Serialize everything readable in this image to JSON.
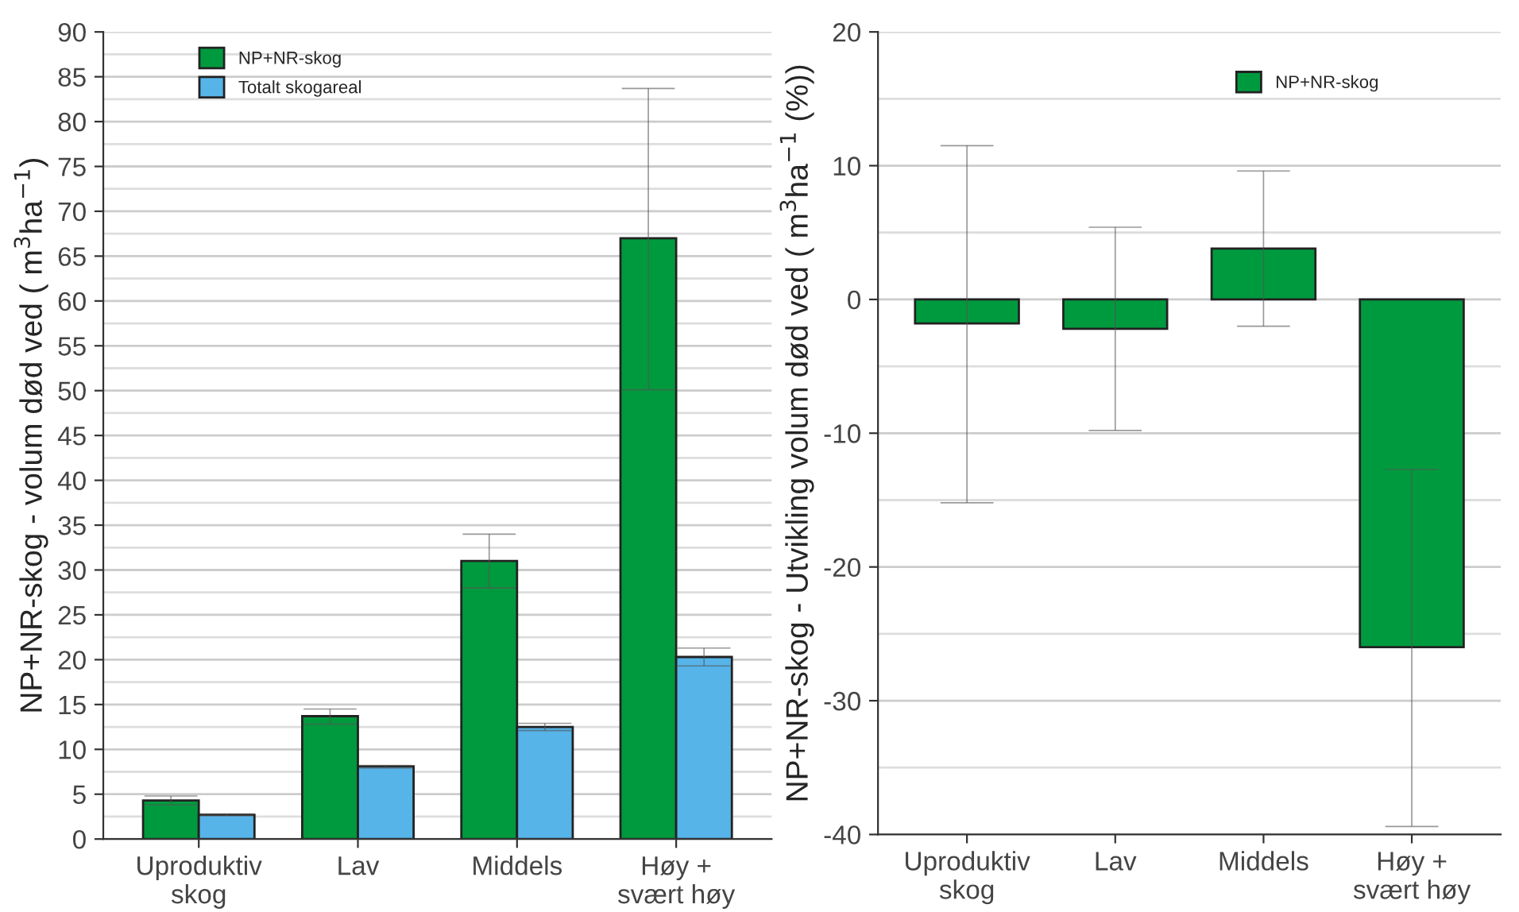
{
  "chart_data": [
    {
      "type": "bar",
      "ylabel": "NP+NR-skog - volum død ved ( m$^{3}$ha$^{−1}$)",
      "categories": [
        "Uproduktiv\nskog",
        "Lav",
        "Middels",
        "Høy +\nsvært høy"
      ],
      "series": [
        {
          "name": "NP+NR-skog",
          "color": "#009a3e",
          "values": [
            4.3,
            13.7,
            31,
            67
          ],
          "errors": [
            [
              3.8,
              4.8
            ],
            [
              12.8,
              14.5
            ],
            [
              28,
              34
            ],
            [
              50.1,
              83.7
            ]
          ]
        },
        {
          "name": "Totalt skogareal",
          "color": "#56b4e9",
          "values": [
            2.7,
            8.1,
            12.5,
            20.3
          ],
          "errors": [
            [
              2.6,
              2.8
            ],
            [
              7.9,
              8.2
            ],
            [
              12.1,
              12.9
            ],
            [
              19.3,
              21.3
            ]
          ]
        }
      ],
      "ylim": [
        0,
        90
      ],
      "yticks": [
        0,
        5,
        10,
        15,
        20,
        25,
        30,
        35,
        40,
        45,
        50,
        55,
        60,
        65,
        70,
        75,
        80,
        85,
        90
      ],
      "grid": "y",
      "legend": "top left"
    },
    {
      "type": "bar",
      "ylabel": "NP+NR-skog - Utvikling volum død ved ( m$^{3}$ha$^{−1}$ (%))",
      "categories": [
        "Uproduktiv\nskog",
        "Lav",
        "Middels",
        "Høy +\nsvært høy"
      ],
      "series": [
        {
          "name": "NP+NR-skog",
          "color": "#009a3e",
          "values": [
            -1.8,
            -2.2,
            3.8,
            -26
          ],
          "errors": [
            [
              -15.2,
              11.5
            ],
            [
              -9.8,
              5.4
            ],
            [
              -2,
              9.6
            ],
            [
              -39.4,
              -12.7
            ]
          ]
        }
      ],
      "ylim": [
        -40,
        20
      ],
      "yticks": [
        -40,
        -30,
        -20,
        -10,
        0,
        10,
        20
      ],
      "grid": "y",
      "legend": "top right"
    }
  ]
}
